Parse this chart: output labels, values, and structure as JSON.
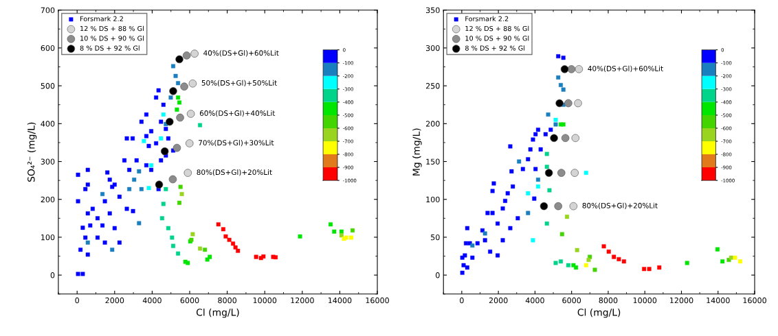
{
  "chart_data": [
    {
      "type": "scatter",
      "xlabel": "Cl (mg/L)",
      "ylabel": "SO₄²⁻ (mg/L)",
      "xlim": [
        -1000,
        16000
      ],
      "xticks": [
        0,
        2000,
        4000,
        6000,
        8000,
        10000,
        12000,
        14000,
        16000
      ],
      "ylim": [
        -50,
        700
      ],
      "yticks": [
        0,
        100,
        200,
        300,
        400,
        500,
        600,
        700
      ],
      "legend": "top left",
      "clim": [
        -1000,
        0
      ],
      "cticks": [
        -1000,
        -900,
        -800,
        -700,
        -600,
        -500,
        -400,
        -300,
        -200,
        -100,
        0
      ],
      "series": [
        {
          "name": "Forsmark 2.2",
          "marker": "square",
          "x": [
            50,
            50,
            300,
            180,
            50,
            300,
            440,
            570,
            570,
            570,
            440,
            830,
            1090,
            1350,
            1090,
            1610,
            1740,
            2000,
            2260,
            1870,
            1740,
            1480,
            2000,
            1480,
            2520,
            2650,
            2960,
            2780,
            2650,
            2980,
            3170,
            3430,
            3690,
            3690,
            3820,
            3950,
            4210,
            4340,
            4470,
            4600,
            4730,
            4860,
            3690,
            3950,
            4210,
            4470,
            4730,
            5120,
            4340,
            2260,
            570,
            700,
            5120,
            5250,
            5380,
            4990,
            4730,
            3300,
            3040,
            2780,
            3430,
            3300,
            1870,
            1350,
            570,
            3820,
            3950,
            4470,
            4600,
            3560,
            6550,
            4600,
            4530,
            4860,
            5060,
            5120,
            5380,
            4730,
            5770,
            5900,
            5380,
            5450,
            5320,
            6030,
            6940,
            7070,
            11880,
            13510,
            13700,
            14090,
            6090,
            5450,
            5510,
            6810,
            14680,
            5580,
            6160,
            14090,
            6550,
            14350,
            14610,
            14220,
            7530,
            7790,
            7920,
            8110,
            8310,
            8440,
            8570,
            9540,
            9800,
            9930,
            10450,
            10580
          ],
          "values": [
            265,
            195,
            125,
            67,
            3,
            3,
            99,
            163,
            239,
            278,
            227,
            175,
            150,
            131,
            99,
            271,
            252,
            239,
            207,
            233,
            163,
            86,
            124,
            195,
            303,
            361,
            361,
            278,
            175,
            169,
            303,
            405,
            424,
            367,
            341,
            380,
            469,
            488,
            405,
            450,
            386,
            361,
            290,
            278,
            348,
            303,
            316,
            329,
            227,
            86,
            54,
            131,
            552,
            526,
            507,
            469,
            399,
            274,
            252,
            227,
            227,
            137,
            67,
            214,
            86,
            230,
            290,
            361,
            424,
            354,
            396,
            188,
            150,
            124,
            99,
            77,
            57,
            227,
            35,
            32,
            469,
            456,
            437,
            89,
            41,
            48,
            102,
            134,
            115,
            115,
            93,
            191,
            233,
            67,
            118,
            214,
            108,
            105,
            70,
            99,
            99,
            96,
            134,
            121,
            102,
            93,
            83,
            73,
            64,
            48,
            45,
            49,
            48,
            47
          ],
          "colors": [
            "#0000ff",
            "#0000ff",
            "#0000ff",
            "#0000ff",
            "#0000ff",
            "#0000ff",
            "#0000ff",
            "#0000ff",
            "#0000ff",
            "#0000ff",
            "#0000ff",
            "#0000ff",
            "#0000ff",
            "#0000ff",
            "#0000ff",
            "#0000ff",
            "#0000ff",
            "#0000ff",
            "#0000ff",
            "#0000ff",
            "#0000ff",
            "#0000ff",
            "#0000ff",
            "#0000ff",
            "#0000ff",
            "#0000ff",
            "#0000ff",
            "#0000ff",
            "#0000ff",
            "#0000ff",
            "#0000ff",
            "#0000ff",
            "#0000ff",
            "#0000ff",
            "#0000ff",
            "#0000ff",
            "#0000ff",
            "#0000ff",
            "#0000ff",
            "#0000ff",
            "#0000ff",
            "#0000ff",
            "#0000ff",
            "#0000ff",
            "#0000ff",
            "#0000ff",
            "#0000ff",
            "#0000ff",
            "#0000ff",
            "#0000ff",
            "#0000ff",
            "#0000ff",
            "#1a7fbf",
            "#1a7fbf",
            "#1a7fbf",
            "#1a7fbf",
            "#1a7fbf",
            "#1a7fbf",
            "#1a7fbf",
            "#1a7fbf",
            "#1a7fbf",
            "#1a7fbf",
            "#1a7fbf",
            "#1a7fbf",
            "#1a7fbf",
            "#00ffff",
            "#00ffff",
            "#00ffff",
            "#00ffff",
            "#00ffff",
            "#00d38a",
            "#00d38a",
            "#00d38a",
            "#00d38a",
            "#00d38a",
            "#00d38a",
            "#00d38a",
            "#00d38a",
            "#00e600",
            "#00e600",
            "#00e600",
            "#00e600",
            "#00e600",
            "#00e600",
            "#00e600",
            "#00e600",
            "#00e600",
            "#00e600",
            "#00e600",
            "#00e600",
            "#44d400",
            "#44d400",
            "#44d400",
            "#44d400",
            "#44d400",
            "#99d420",
            "#99d420",
            "#99d420",
            "#99d420",
            "#ffff00",
            "#ffff00",
            "#ffff00",
            "#ff0000",
            "#ff0000",
            "#ff0000",
            "#ff0000",
            "#ff0000",
            "#ff0000",
            "#ff0000",
            "#ff0000",
            "#ff0000",
            "#ff0000",
            "#ff0000",
            "#ff0000"
          ],
          "cvalues": [
            -50,
            -50,
            -50,
            -50,
            -50,
            -50,
            -50,
            -50,
            -50,
            -50,
            -50,
            -50,
            -50,
            -50,
            -50,
            -50,
            -50,
            -50,
            -50,
            -50,
            -50,
            -50,
            -50,
            -50,
            -50,
            -50,
            -50,
            -50,
            -50,
            -50,
            -50,
            -50,
            -50,
            -50,
            -50,
            -50,
            -50,
            -50,
            -50,
            -50,
            -50,
            -50,
            -50,
            -50,
            -50,
            -50,
            -50,
            -50,
            -50,
            -50,
            -50,
            -50,
            -150,
            -150,
            -150,
            -150,
            -150,
            -150,
            -150,
            -150,
            -150,
            -150,
            -150,
            -150,
            -150,
            -250,
            -250,
            -250,
            -250,
            -250,
            -350,
            -350,
            -350,
            -350,
            -350,
            -350,
            -350,
            -350,
            -450,
            -450,
            -450,
            -450,
            -450,
            -450,
            -450,
            -450,
            -450,
            -450,
            -450,
            -450,
            -550,
            -550,
            -550,
            -550,
            -550,
            -650,
            -650,
            -650,
            -650,
            -750,
            -750,
            -750,
            -950,
            -950,
            -950,
            -950,
            -950,
            -950,
            -950,
            -950,
            -950,
            -950,
            -950,
            -950
          ]
        },
        {
          "name": "12 % DS + 88 % Gl",
          "marker": "circle",
          "color": "#d4d4d4",
          "x": [
            6260,
            6160,
            6060,
            5990,
            5900
          ],
          "values": [
            585,
            506,
            426,
            348,
            270
          ]
        },
        {
          "name": "10 % DS + 90 % Gl",
          "marker": "circle",
          "color": "#8c8c8c",
          "x": [
            5840,
            5710,
            5490,
            5320,
            5100
          ],
          "values": [
            580,
            498,
            416,
            336,
            253
          ]
        },
        {
          "name": "8 % DS + 92 % Gl",
          "marker": "circle",
          "color": "#000000",
          "x": [
            5450,
            5120,
            4930,
            4670,
            4370
          ],
          "values": [
            570,
            486,
            405,
            327,
            239
          ]
        }
      ],
      "annotations": [
        {
          "text": "40%(DS+Gl)+60%Lit",
          "x": 6260,
          "y": 585
        },
        {
          "text": "50%(DS+Gl)+50%Lit",
          "x": 6160,
          "y": 506
        },
        {
          "text": "60%(DS+Gl)+40%Lit",
          "x": 6060,
          "y": 426
        },
        {
          "text": "70%(DS+Gl)+30%Lit",
          "x": 5990,
          "y": 348
        },
        {
          "text": "80%(DS+Gl)+20%Lit",
          "x": 5900,
          "y": 270
        }
      ]
    },
    {
      "type": "scatter",
      "xlabel": "Cl (mg/L)",
      "ylabel": "Mg (mg/L)",
      "xlim": [
        -1000,
        16000
      ],
      "xticks": [
        0,
        2000,
        4000,
        6000,
        8000,
        10000,
        12000,
        14000,
        16000
      ],
      "ylim": [
        -25,
        350
      ],
      "yticks": [
        0,
        50,
        100,
        150,
        200,
        250,
        300,
        350
      ],
      "legend": "top left",
      "clim": [
        -1000,
        0
      ],
      "cticks": [
        -1000,
        -900,
        -800,
        -700,
        -600,
        -500,
        -400,
        -300,
        -200,
        -100,
        0
      ],
      "series": [
        {
          "name": "Forsmark 2.2",
          "marker": "square",
          "x": [
            30,
            100,
            170,
            230,
            300,
            440,
            580,
            860,
            300,
            30,
            1130,
            1270,
            1410,
            1680,
            1750,
            1680,
            1960,
            1960,
            1550,
            2240,
            2370,
            2510,
            2790,
            2650,
            2240,
            2650,
            2720,
            3060,
            3340,
            3620,
            3750,
            3890,
            4030,
            4170,
            3960,
            4030,
            4310,
            4580,
            4860,
            5270,
            5550,
            4720,
            5270,
            5410,
            5550,
            5130,
            5550,
            3620,
            4170,
            1270,
            580,
            3130,
            3890,
            3620,
            4170,
            5130,
            6790,
            4650,
            4650,
            4790,
            4650,
            5130,
            5410,
            5820,
            5410,
            5550,
            6100,
            6240,
            12310,
            13970,
            14240,
            5480,
            6995,
            7270,
            14590,
            5750,
            6300,
            6930,
            14720,
            14930,
            15210,
            6790,
            7760,
            8030,
            8310,
            8580,
            8860,
            9960,
            10240,
            10790
          ],
          "values": [
            3,
            13,
            26,
            42,
            62,
            42,
            23,
            42,
            10,
            23,
            59,
            46,
            82,
            111,
            121,
            82,
            68,
            26,
            31,
            88,
            98,
            108,
            117,
            170,
            46,
            62,
            137,
            75,
            140,
            153,
            166,
            179,
            186,
            192,
            101,
            140,
            166,
            186,
            192,
            289,
            287,
            212,
            261,
            251,
            245,
            199,
            225,
            82,
            126,
            55,
            39,
            150,
            46,
            108,
            117,
            205,
            135,
            160,
            143,
            112,
            68,
            16,
            18,
            13,
            199,
            199,
            13,
            10,
            16,
            34,
            18,
            54,
            24,
            7,
            20,
            77,
            33,
            20,
            23,
            23,
            18,
            13,
            38,
            31,
            24,
            21,
            18,
            8,
            8,
            10
          ],
          "colors": [
            "#0000ff",
            "#0000ff",
            "#0000ff",
            "#0000ff",
            "#0000ff",
            "#0000ff",
            "#0000ff",
            "#0000ff",
            "#0000ff",
            "#0000ff",
            "#0000ff",
            "#0000ff",
            "#0000ff",
            "#0000ff",
            "#0000ff",
            "#0000ff",
            "#0000ff",
            "#0000ff",
            "#0000ff",
            "#0000ff",
            "#0000ff",
            "#0000ff",
            "#0000ff",
            "#0000ff",
            "#0000ff",
            "#0000ff",
            "#0000ff",
            "#0000ff",
            "#0000ff",
            "#0000ff",
            "#0000ff",
            "#0000ff",
            "#0000ff",
            "#0000ff",
            "#0000ff",
            "#0000ff",
            "#0000ff",
            "#0000ff",
            "#0000ff",
            "#0000ff",
            "#0000ff",
            "#1a7fbf",
            "#1a7fbf",
            "#1a7fbf",
            "#1a7fbf",
            "#1a7fbf",
            "#1a7fbf",
            "#1a7fbf",
            "#1a7fbf",
            "#1a7fbf",
            "#1a7fbf",
            "#1a7fbf",
            "#00ffff",
            "#00ffff",
            "#00ffff",
            "#00ffff",
            "#00ffff",
            "#00d38a",
            "#00d38a",
            "#00d38a",
            "#00d38a",
            "#00d38a",
            "#00d38a",
            "#00d38a",
            "#00e600",
            "#00e600",
            "#00e600",
            "#00e600",
            "#00e600",
            "#00e600",
            "#00e600",
            "#44d400",
            "#44d400",
            "#44d400",
            "#44d400",
            "#99d420",
            "#99d420",
            "#99d420",
            "#99d420",
            "#ffff00",
            "#ffff00",
            "#ffff00",
            "#ff0000",
            "#ff0000",
            "#ff0000",
            "#ff0000",
            "#ff0000",
            "#ff0000",
            "#ff0000",
            "#ff0000"
          ],
          "cvalues": [
            -50,
            -50,
            -50,
            -50,
            -50,
            -50,
            -50,
            -50,
            -50,
            -50,
            -50,
            -50,
            -50,
            -50,
            -50,
            -50,
            -50,
            -50,
            -50,
            -50,
            -50,
            -50,
            -50,
            -50,
            -50,
            -50,
            -50,
            -50,
            -50,
            -50,
            -50,
            -50,
            -50,
            -50,
            -50,
            -50,
            -50,
            -50,
            -50,
            -50,
            -50,
            -150,
            -150,
            -150,
            -150,
            -150,
            -150,
            -150,
            -150,
            -150,
            -150,
            -150,
            -250,
            -250,
            -250,
            -250,
            -250,
            -350,
            -350,
            -350,
            -350,
            -350,
            -350,
            -350,
            -450,
            -450,
            -450,
            -450,
            -450,
            -450,
            -450,
            -550,
            -550,
            -550,
            -550,
            -650,
            -650,
            -650,
            -650,
            -750,
            -750,
            -750,
            -950,
            -950,
            -950,
            -950,
            -950,
            -950,
            -950,
            -950
          ]
        },
        {
          "name": "12 % DS + 88 % Gl",
          "marker": "circle",
          "color": "#d4d4d4",
          "x": [
            6400,
            6350,
            6210,
            6170,
            6100
          ],
          "values": [
            272,
            227,
            181,
            135,
            91
          ]
        },
        {
          "name": "10 % DS + 90 % Gl",
          "marker": "circle",
          "color": "#8c8c8c",
          "x": [
            5990,
            5820,
            5660,
            5440,
            5270
          ],
          "values": [
            272,
            227,
            181,
            135,
            91
          ]
        },
        {
          "name": "8 % DS + 92 % Gl",
          "marker": "circle",
          "color": "#000000",
          "x": [
            5620,
            5340,
            5040,
            4760,
            4490
          ],
          "values": [
            272,
            227,
            181,
            135,
            91
          ]
        }
      ],
      "annotations": [
        {
          "text": "40%(DS+Gl)+60%Lit",
          "x": 6400,
          "y": 272
        },
        {
          "text": "80%(DS+Gl)+20%Lit",
          "x": 6100,
          "y": 91
        }
      ]
    }
  ]
}
